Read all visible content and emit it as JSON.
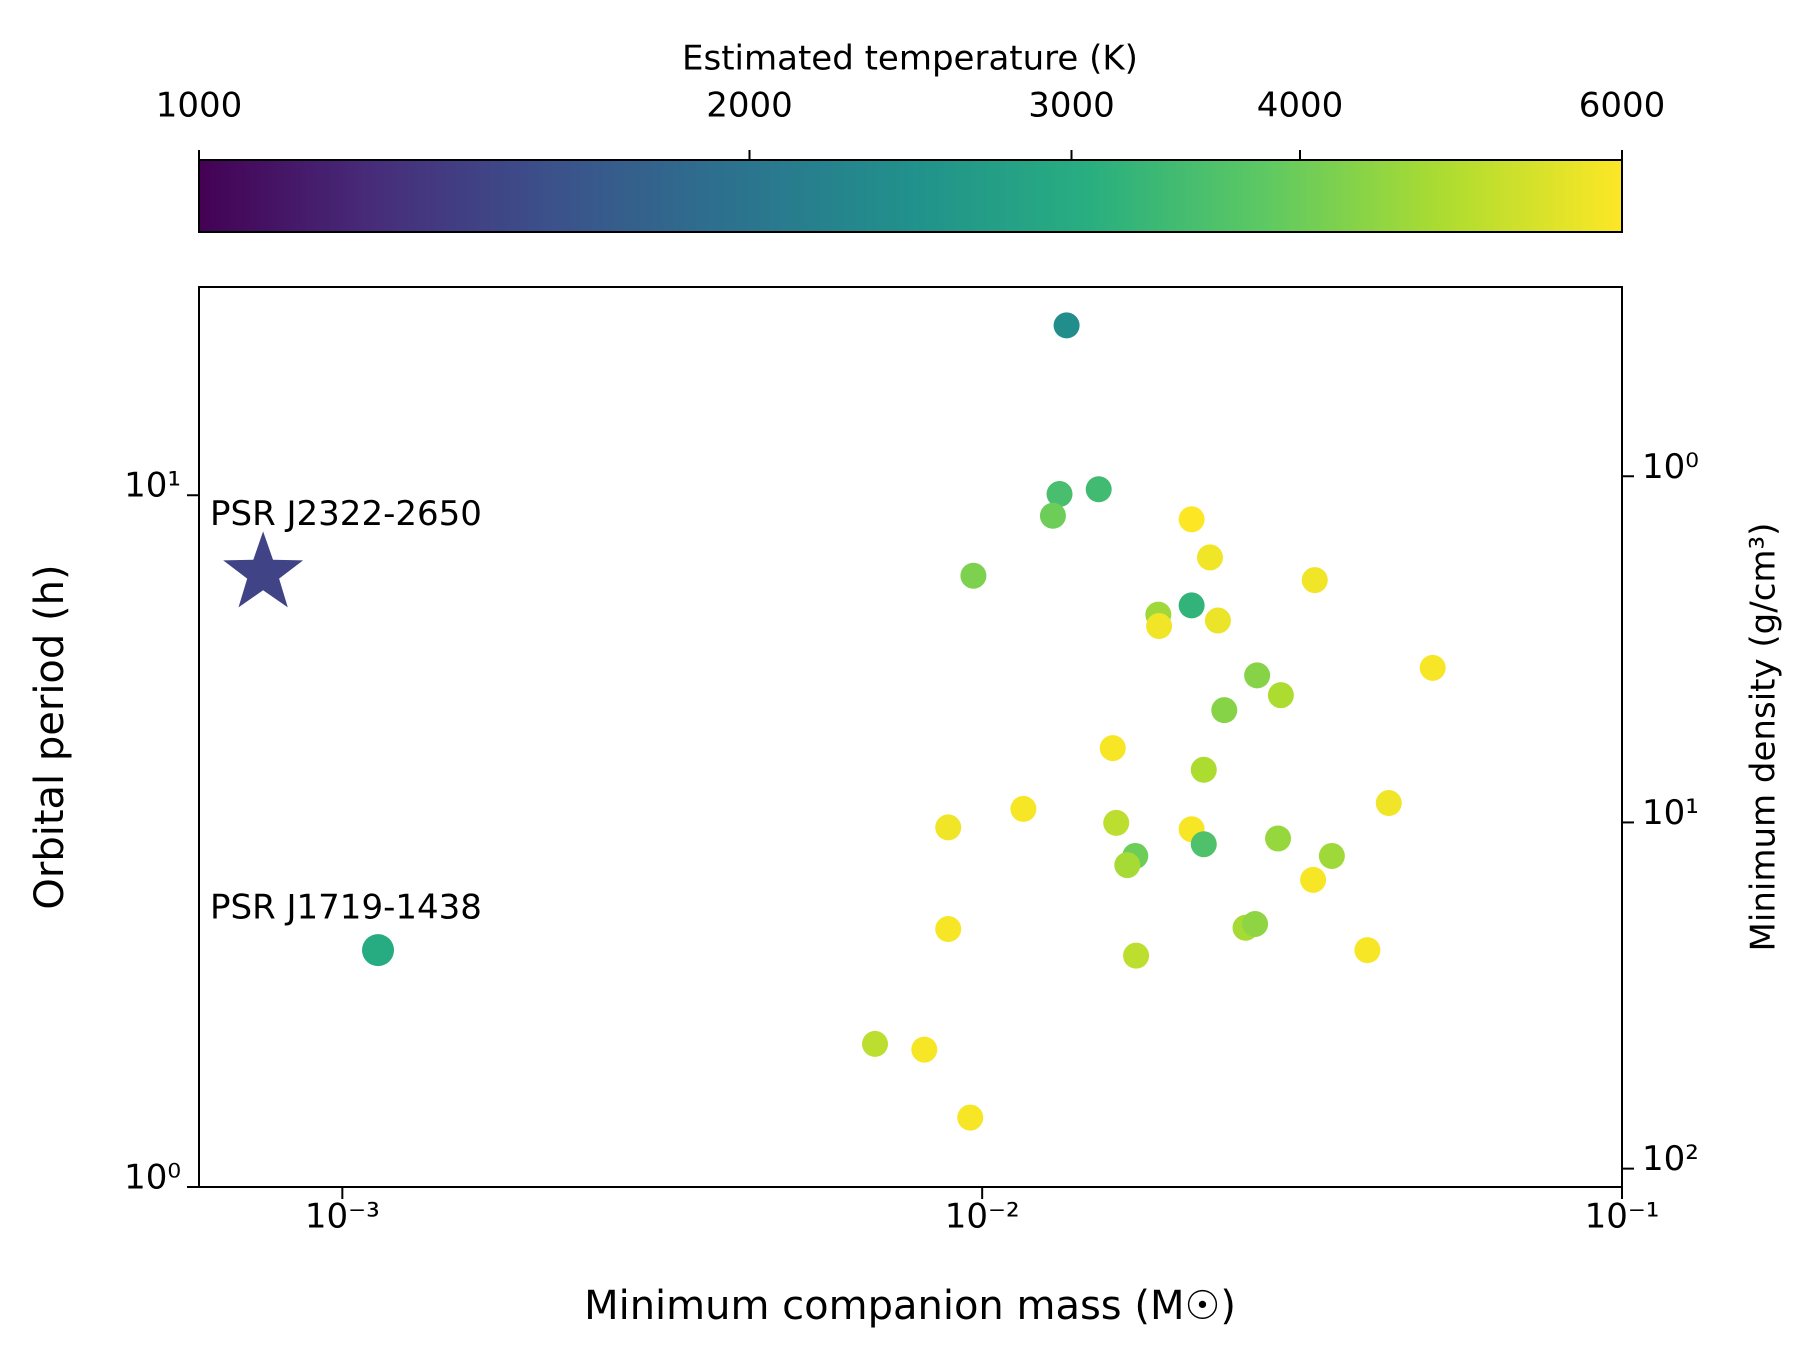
{
  "chart_data": {
    "type": "scatter",
    "xlabel": "Minimum companion mass (M☉)",
    "ylabel": "Orbital period (h)",
    "y2label": "Minimum density (g/cm³)",
    "xlog": true,
    "ylog": true,
    "y2log": true,
    "xlim": [
      0.000597,
      0.1
    ],
    "ylim": [
      1,
      20
    ],
    "y2lim": [
      113,
      0.284
    ],
    "xticks": [
      {
        "value": 0.001,
        "label": "10⁻³"
      },
      {
        "value": 0.01,
        "label": "10⁻²"
      },
      {
        "value": 0.1,
        "label": "10⁻¹"
      }
    ],
    "yticks": [
      {
        "value": 1,
        "label": "10⁰"
      },
      {
        "value": 10,
        "label": "10¹"
      }
    ],
    "y2ticks": [
      {
        "value": 1,
        "label": "10⁰"
      },
      {
        "value": 10,
        "label": "10¹"
      },
      {
        "value": 100,
        "label": "10²"
      }
    ],
    "colorbar": {
      "label": "Estimated temperature (K)",
      "log": true,
      "lim": [
        1000,
        6000
      ],
      "ticks": [
        1000,
        2000,
        3000,
        4000,
        6000
      ],
      "colors": [
        "#440154",
        "#472d7b",
        "#3b528b",
        "#2c728e",
        "#21918c",
        "#28ae80",
        "#5ec962",
        "#addc30",
        "#fde725"
      ]
    },
    "points": {
      "x": [
        0.01355,
        0.01321,
        0.01521,
        0.0129,
        0.00969,
        0.02125,
        0.0227,
        0.0331,
        0.02125,
        0.01885,
        0.0189,
        0.02336,
        0.0506,
        0.0269,
        0.0293,
        0.0239,
        0.016,
        0.0222,
        0.0432,
        0.0116,
        0.00885,
        0.0162,
        0.02125,
        0.0222,
        0.029,
        0.01735,
        0.01686,
        0.0352,
        0.0329,
        0.00885,
        0.0258,
        0.0267,
        0.0174,
        0.04,
        0.0068,
        0.00812,
        0.00958
      ],
      "y": [
        17.6,
        10.04,
        10.2,
        9.34,
        7.65,
        9.23,
        8.13,
        7.54,
        6.93,
        6.72,
        6.47,
        6.59,
        5.63,
        5.49,
        5.14,
        4.89,
        4.31,
        4.01,
        3.59,
        3.52,
        3.31,
        3.36,
        3.29,
        3.13,
        3.19,
        3.01,
        2.92,
        3.01,
        2.78,
        2.36,
        2.37,
        2.4,
        2.16,
        2.2,
        1.61,
        1.58,
        1.26
      ],
      "temperature": [
        2400,
        3500,
        3400,
        4000,
        4200,
        6000,
        5800,
        5800,
        3200,
        4600,
        5800,
        5700,
        5900,
        4300,
        4800,
        4300,
        5900,
        4800,
        5800,
        5900,
        5800,
        5000,
        5900,
        3600,
        4500,
        4000,
        4700,
        4600,
        5900,
        5900,
        4700,
        4400,
        5000,
        5900,
        5000,
        5900,
        5900
      ]
    },
    "annotations": [
      {
        "text": "PSR J2322-2650",
        "x": 0.000752,
        "y": 7.71,
        "temperature": 1430,
        "marker": "star"
      },
      {
        "text": "PSR J1719-1438",
        "x": 0.001137,
        "y": 2.2,
        "temperature": 3000,
        "marker": "circle"
      }
    ]
  }
}
